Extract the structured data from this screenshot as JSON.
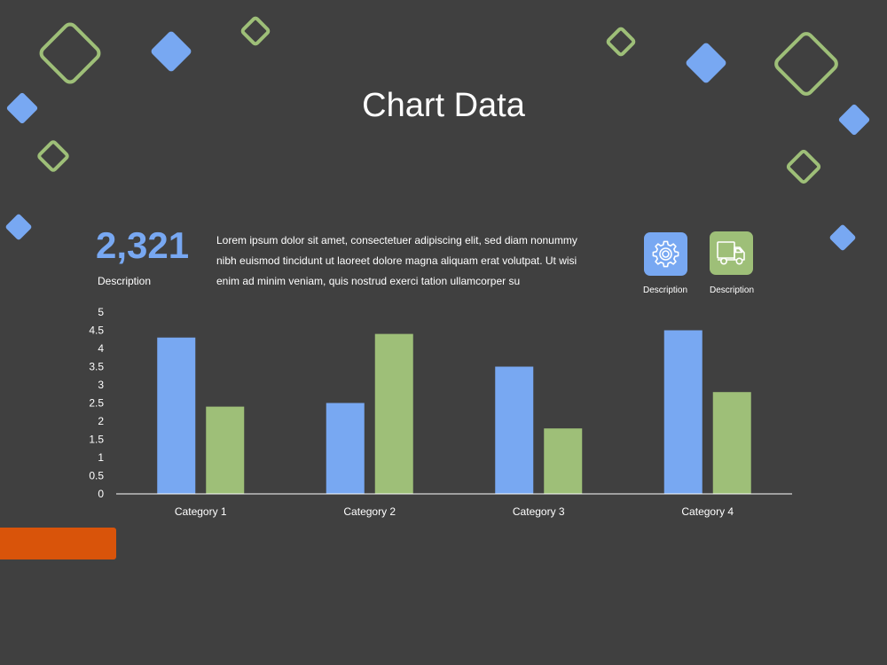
{
  "title": "Chart Data",
  "stat": {
    "value": "2,321",
    "label": "Description"
  },
  "body_text": "Lorem ipsum dolor sit amet, consectetuer adipiscing elit, sed diam nonummy nibh euismod tincidunt ut laoreet dolore magna aliquam erat volutpat. Ut wisi enim ad minim veniam, quis nostrud exerci tation ullamcorper su",
  "icons": [
    {
      "name": "gear-icon",
      "caption": "Description",
      "color": "#78a8f2"
    },
    {
      "name": "truck-icon",
      "caption": "Description",
      "color": "#9ebf78"
    }
  ],
  "colors": {
    "background": "#404040",
    "blue": "#78a8f2",
    "green": "#9ebf78",
    "orange": "#d9540a"
  },
  "chart_data": {
    "type": "bar",
    "categories": [
      "Category 1",
      "Category 2",
      "Category 3",
      "Category 4"
    ],
    "series": [
      {
        "values": [
          4.3,
          2.5,
          3.5,
          4.5
        ],
        "color": "#78a8f2"
      },
      {
        "values": [
          2.4,
          4.4,
          1.8,
          2.8
        ],
        "color": "#9ebf78"
      }
    ],
    "ylim": [
      0,
      5
    ],
    "yticks": [
      "0",
      "0.5",
      "1",
      "1.5",
      "2",
      "2.5",
      "3",
      "3.5",
      "4",
      "4.5",
      "5"
    ],
    "grid": false,
    "legend": "none"
  }
}
